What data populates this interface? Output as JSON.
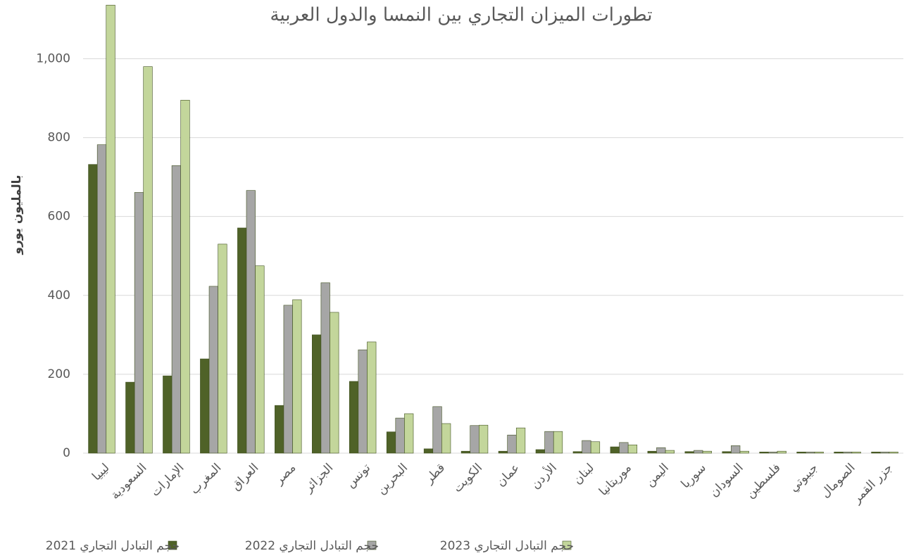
{
  "chart_data": {
    "type": "bar",
    "title": "تطورات الميزان التجاري بين النمسا والدول العربية",
    "y_label": "بالمليون يورو",
    "categories": [
      "ليبيا",
      "السعودية",
      "الإمارات",
      "المغرب",
      "العراق",
      "مصر",
      "الجزائر",
      "تونس",
      "البحرين",
      "قطر",
      "الكويت",
      "عمان",
      "الأردن",
      "لبنان",
      "موريتانيا",
      "اليمن",
      "سوريا",
      "السودان",
      "فلسطين",
      "جيبوتي",
      "الصومال",
      "جزر القمر"
    ],
    "series": [
      {
        "name": "حجم التبادل التجاري 2021",
        "color": "#4f6228",
        "values": [
          732,
          180,
          196,
          239,
          571,
          121,
          300,
          182,
          54,
          11,
          5,
          5,
          9,
          4,
          16,
          5,
          4,
          4,
          3,
          3,
          3,
          3
        ]
      },
      {
        "name": "حجم التبادل التجاري 2022",
        "color": "#a6a6a6",
        "values": [
          782,
          661,
          729,
          423,
          666,
          375,
          432,
          262,
          89,
          118,
          70,
          46,
          55,
          32,
          27,
          14,
          7,
          19,
          3,
          3,
          3,
          3
        ]
      },
      {
        "name": "حجم التبادل التجاري 2023",
        "color": "#c3d69b",
        "values": [
          1136,
          980,
          895,
          530,
          475,
          389,
          357,
          282,
          100,
          75,
          71,
          64,
          55,
          29,
          21,
          7,
          5,
          5,
          5,
          3,
          3,
          3
        ]
      }
    ],
    "ylim": [
      0,
      1140
    ],
    "yticks": [
      0,
      200,
      400,
      600,
      800,
      {
        "value": 1000,
        "label": "1,000"
      }
    ],
    "grid": true
  }
}
